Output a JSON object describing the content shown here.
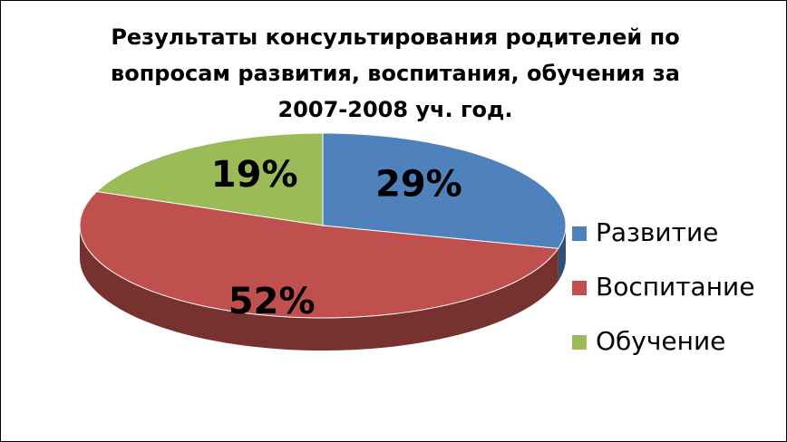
{
  "chart_data": {
    "type": "pie",
    "title": "Результаты консультирования родителей по вопросам развития, воспитания, обучения за 2007-2008 уч. год.",
    "categories": [
      "Развитие",
      "Воспитание",
      "Обучение"
    ],
    "values": [
      29,
      52,
      19
    ],
    "value_labels": [
      "29%",
      "52%",
      "19%"
    ],
    "colors": [
      "#4f81bd",
      "#c0504d",
      "#9bbb59"
    ],
    "legend": "right"
  }
}
